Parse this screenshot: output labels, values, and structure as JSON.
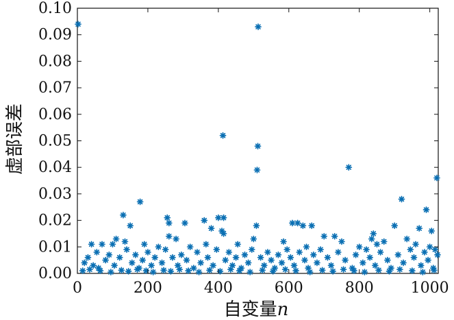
{
  "chart_data": {
    "type": "scatter",
    "title": "",
    "xlabel": "自变量",
    "xlabel_var": "n",
    "ylabel": "虚部误差",
    "xlim": [
      0,
      1024
    ],
    "ylim": [
      0,
      0.1
    ],
    "xticks": [
      "0",
      "200",
      "400",
      "600",
      "800",
      "1000"
    ],
    "yticks": [
      "0.00",
      "0.01",
      "0.02",
      "0.03",
      "0.04",
      "0.05",
      "0.06",
      "0.07",
      "0.08",
      "0.09",
      "0.10"
    ],
    "grid": false,
    "marker": "asterisk",
    "color": "#0a6fb3",
    "series": [
      {
        "points": [
          [
            2,
            0.094
          ],
          [
            513,
            0.093
          ],
          [
            413,
            0.052
          ],
          [
            512,
            0.048
          ],
          [
            510,
            0.039
          ],
          [
            770,
            0.04
          ],
          [
            1020,
            0.036
          ],
          [
            920,
            0.028
          ],
          [
            178,
            0.027
          ],
          [
            990,
            0.024
          ],
          [
            130,
            0.022
          ],
          [
            255,
            0.021
          ],
          [
            400,
            0.021
          ],
          [
            415,
            0.021
          ],
          [
            260,
            0.019
          ],
          [
            305,
            0.019
          ],
          [
            360,
            0.02
          ],
          [
            150,
            0.018
          ],
          [
            508,
            0.018
          ],
          [
            610,
            0.019
          ],
          [
            625,
            0.019
          ],
          [
            900,
            0.018
          ],
          [
            640,
            0.018
          ],
          [
            665,
            0.018
          ],
          [
            380,
            0.017
          ],
          [
            410,
            0.016
          ],
          [
            1005,
            0.016
          ],
          [
            970,
            0.017
          ],
          [
            415,
            0.015
          ],
          [
            840,
            0.015
          ],
          [
            260,
            0.014
          ],
          [
            280,
            0.013
          ],
          [
            730,
            0.014
          ],
          [
            700,
            0.014
          ],
          [
            835,
            0.013
          ],
          [
            40,
            0.011
          ],
          [
            70,
            0.011
          ],
          [
            100,
            0.011
          ],
          [
            110,
            0.013
          ],
          [
            135,
            0.012
          ],
          [
            190,
            0.011
          ],
          [
            230,
            0.01
          ],
          [
            320,
            0.01
          ],
          [
            365,
            0.011
          ],
          [
            455,
            0.011
          ],
          [
            500,
            0.013
          ],
          [
            585,
            0.012
          ],
          [
            650,
            0.01
          ],
          [
            750,
            0.012
          ],
          [
            800,
            0.01
          ],
          [
            850,
            0.011
          ],
          [
            870,
            0.012
          ],
          [
            935,
            0.013
          ],
          [
            960,
            0.011
          ],
          [
            1000,
            0.01
          ],
          [
            1015,
            0.009
          ],
          [
            20,
            0.004
          ],
          [
            30,
            0.006
          ],
          [
            45,
            0.003
          ],
          [
            55,
            0.008
          ],
          [
            60,
            0.002
          ],
          [
            80,
            0.005
          ],
          [
            90,
            0.007
          ],
          [
            105,
            0.003
          ],
          [
            120,
            0.006
          ],
          [
            140,
            0.009
          ],
          [
            155,
            0.004
          ],
          [
            165,
            0.007
          ],
          [
            175,
            0.002
          ],
          [
            185,
            0.005
          ],
          [
            200,
            0.008
          ],
          [
            210,
            0.003
          ],
          [
            220,
            0.006
          ],
          [
            240,
            0.004
          ],
          [
            250,
            0.009
          ],
          [
            270,
            0.006
          ],
          [
            285,
            0.003
          ],
          [
            295,
            0.007
          ],
          [
            310,
            0.005
          ],
          [
            330,
            0.002
          ],
          [
            340,
            0.008
          ],
          [
            350,
            0.004
          ],
          [
            370,
            0.006
          ],
          [
            385,
            0.003
          ],
          [
            395,
            0.009
          ],
          [
            420,
            0.005
          ],
          [
            430,
            0.008
          ],
          [
            440,
            0.003
          ],
          [
            450,
            0.006
          ],
          [
            465,
            0.002
          ],
          [
            475,
            0.007
          ],
          [
            485,
            0.004
          ],
          [
            495,
            0.009
          ],
          [
            520,
            0.006
          ],
          [
            530,
            0.003
          ],
          [
            540,
            0.008
          ],
          [
            550,
            0.005
          ],
          [
            560,
            0.002
          ],
          [
            570,
            0.007
          ],
          [
            580,
            0.004
          ],
          [
            595,
            0.009
          ],
          [
            605,
            0.006
          ],
          [
            615,
            0.003
          ],
          [
            630,
            0.008
          ],
          [
            645,
            0.005
          ],
          [
            655,
            0.002
          ],
          [
            670,
            0.007
          ],
          [
            680,
            0.004
          ],
          [
            690,
            0.009
          ],
          [
            710,
            0.006
          ],
          [
            720,
            0.003
          ],
          [
            740,
            0.008
          ],
          [
            760,
            0.005
          ],
          [
            780,
            0.002
          ],
          [
            790,
            0.007
          ],
          [
            810,
            0.004
          ],
          [
            820,
            0.009
          ],
          [
            830,
            0.006
          ],
          [
            845,
            0.003
          ],
          [
            860,
            0.008
          ],
          [
            880,
            0.005
          ],
          [
            890,
            0.002
          ],
          [
            910,
            0.007
          ],
          [
            925,
            0.004
          ],
          [
            945,
            0.009
          ],
          [
            955,
            0.006
          ],
          [
            975,
            0.003
          ],
          [
            985,
            0.008
          ],
          [
            995,
            0.005
          ],
          [
            1010,
            0.002
          ],
          [
            1022,
            0.007
          ],
          [
            15,
            0.001
          ],
          [
            35,
            0.0015
          ],
          [
            65,
            0.001
          ],
          [
            95,
            0.0005
          ],
          [
            125,
            0.0012
          ],
          [
            145,
            0.0008
          ],
          [
            170,
            0.0015
          ],
          [
            195,
            0.001
          ],
          [
            215,
            0.0005
          ],
          [
            245,
            0.0012
          ],
          [
            265,
            0.0008
          ],
          [
            290,
            0.0015
          ],
          [
            315,
            0.001
          ],
          [
            345,
            0.0005
          ],
          [
            375,
            0.0012
          ],
          [
            405,
            0.0008
          ],
          [
            435,
            0.0015
          ],
          [
            460,
            0.001
          ],
          [
            490,
            0.0005
          ],
          [
            525,
            0.0012
          ],
          [
            555,
            0.0008
          ],
          [
            590,
            0.0015
          ],
          [
            620,
            0.001
          ],
          [
            660,
            0.0005
          ],
          [
            695,
            0.0012
          ],
          [
            725,
            0.0008
          ],
          [
            755,
            0.0015
          ],
          [
            785,
            0.001
          ],
          [
            815,
            0.0005
          ],
          [
            855,
            0.0012
          ],
          [
            885,
            0.0008
          ],
          [
            915,
            0.0015
          ],
          [
            950,
            0.001
          ],
          [
            980,
            0.0005
          ],
          [
            1012,
            0.0012
          ]
        ]
      }
    ]
  }
}
